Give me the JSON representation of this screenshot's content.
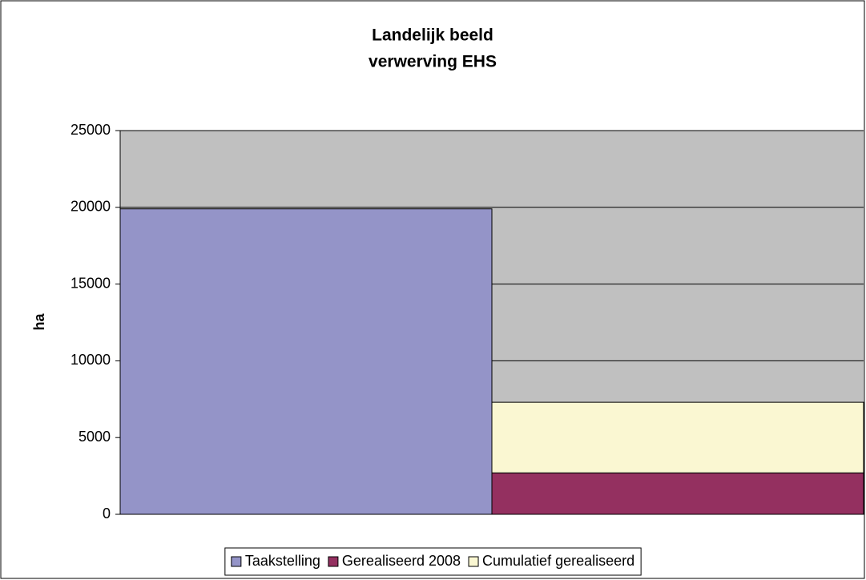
{
  "chart_data": {
    "type": "stacked_bar",
    "title": [
      "Landelijk beeld",
      "verwerving EHS"
    ],
    "y_label": "ha",
    "categories": [
      null,
      null
    ],
    "series": [
      {
        "name": "Taakstelling",
        "color": "#9494c8",
        "values": [
          19900,
          null
        ]
      },
      {
        "name": "Gerealiseerd 2008",
        "color": "#943060",
        "values": [
          null,
          2700
        ]
      },
      {
        "name": "Cumulatief gerealiseerd",
        "color": "#faf7d2",
        "values": [
          null,
          4600
        ]
      }
    ],
    "ylim": [
      0,
      25000
    ],
    "yticks": [
      0,
      5000,
      10000,
      15000,
      20000,
      25000
    ],
    "grid": true,
    "legend": "bottom",
    "plot_background": "#c0c0c0"
  }
}
